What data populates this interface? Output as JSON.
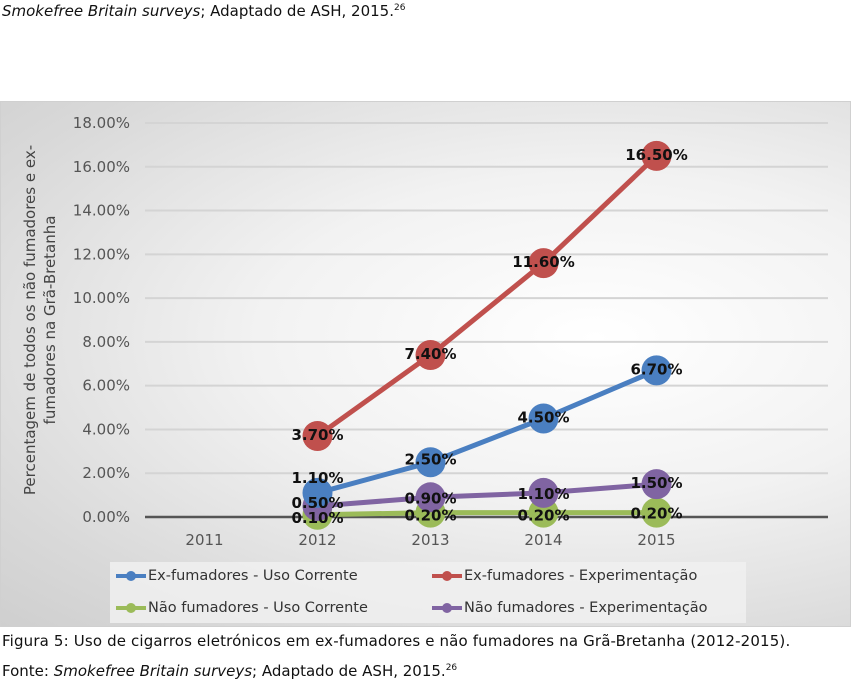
{
  "top_source": {
    "italic": "Smokefree Britain surveys",
    "rest": "; Adaptado de ASH, 2015.",
    "sup": "26"
  },
  "caption": {
    "text": "Figura 5: Uso de cigarros eletrónicos em ex-fumadores e não fumadores na Grã-Bretanha (2012-2015).",
    "source_prefix": "Fonte: ",
    "source_italic": "Smokefree Britain surveys",
    "source_rest": "; Adaptado de ASH, 2015.",
    "source_sup": "26"
  },
  "chart_data": {
    "type": "line",
    "ylabel_lines": [
      "Percentagem de todos os não fumadores e ex-",
      "fumadores na Grã-Bretanha"
    ],
    "categories": [
      "2011",
      "2012",
      "2013",
      "2014",
      "2015"
    ],
    "ylim": [
      0,
      18
    ],
    "yticks": [
      "0.00%",
      "2.00%",
      "4.00%",
      "6.00%",
      "8.00%",
      "10.00%",
      "12.00%",
      "14.00%",
      "16.00%",
      "18.00%"
    ],
    "grid": true,
    "legend_position": "bottom",
    "series": [
      {
        "name": "Ex-fumadores - Uso Corrente",
        "color": "#4a7fc1",
        "values": [
          null,
          1.1,
          2.5,
          4.5,
          6.7
        ],
        "labels": [
          null,
          "1.10%",
          "2.50%",
          "4.50%",
          "6.70%"
        ]
      },
      {
        "name": "Ex-fumadores - Experimentação",
        "color": "#c0504d",
        "values": [
          null,
          3.7,
          7.4,
          11.6,
          16.5
        ],
        "labels": [
          null,
          "3.70%",
          "7.40%",
          "11.60%",
          "16.50%"
        ]
      },
      {
        "name": "Não fumadores - Uso Corrente",
        "color": "#9bbb59",
        "values": [
          null,
          0.1,
          0.2,
          0.2,
          0.2
        ],
        "labels": [
          null,
          "0.10%",
          "0.20%",
          "0.20%",
          "0.20%"
        ]
      },
      {
        "name": "Não fumadores - Experimentação",
        "color": "#8064a2",
        "values": [
          null,
          0.5,
          0.9,
          1.1,
          1.5
        ],
        "labels": [
          null,
          "0.50%",
          "0.90%",
          "1.10%",
          "1.50%"
        ]
      }
    ]
  }
}
